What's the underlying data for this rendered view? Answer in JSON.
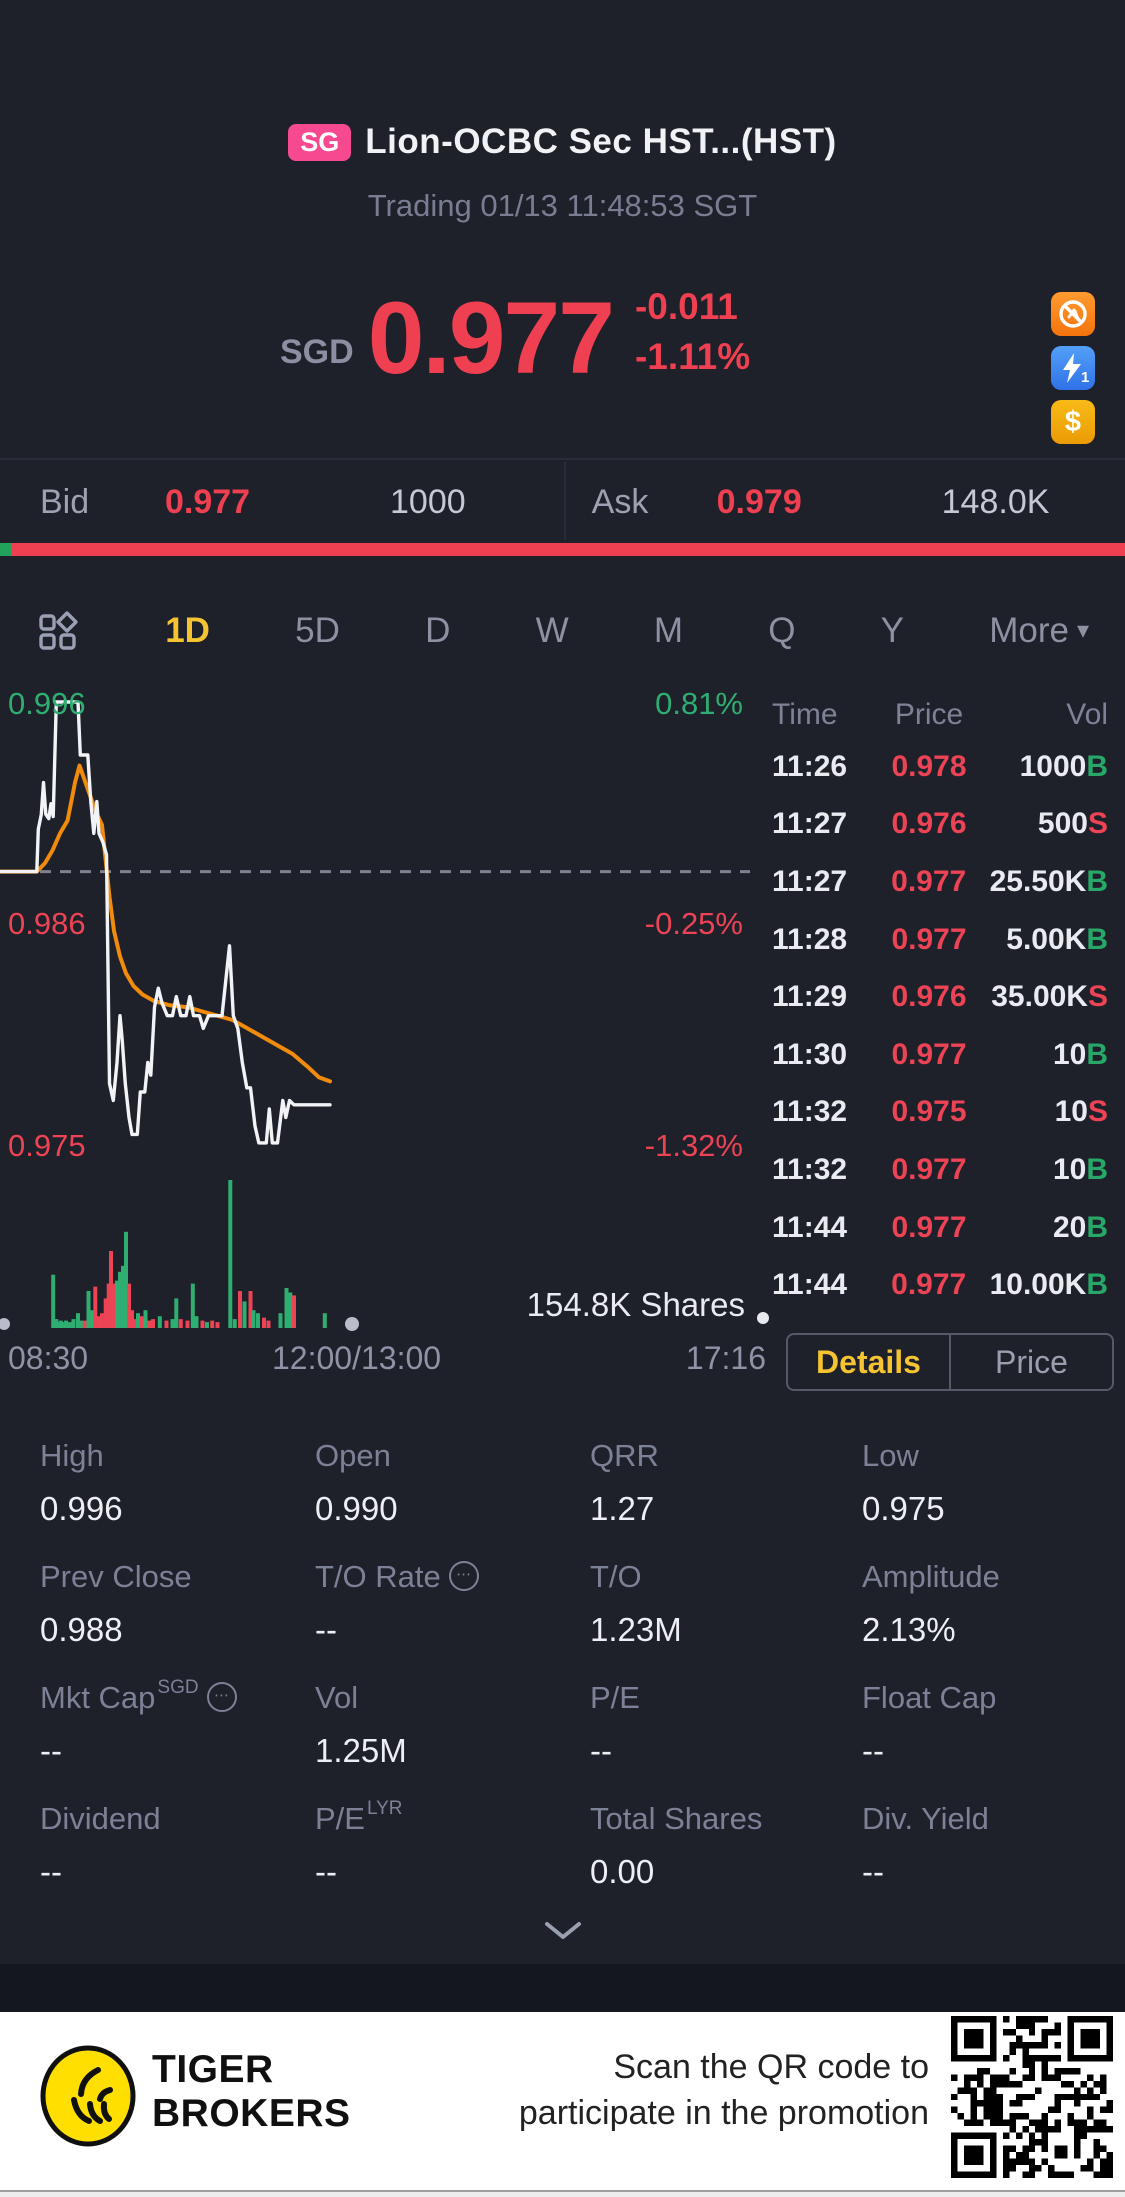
{
  "colors": {
    "up": "#2fae71",
    "down": "#ec4355",
    "price_red": "#ee4050",
    "accent_yellow": "#f6c431",
    "avg_orange": "#f08b0c",
    "badge_pink": "#f7498f"
  },
  "header": {
    "market_badge": "SG",
    "title": "Lion-OCBC Sec HST...(HST)",
    "subtitle": "Trading 01/13 11:48:53 SGT"
  },
  "quote": {
    "currency": "SGD",
    "price": "0.977",
    "change": "-0.011",
    "change_pct": "-1.11%",
    "badges": [
      {
        "name": "no-short-icon"
      },
      {
        "name": "flash-order-icon",
        "label": "1"
      },
      {
        "name": "cash-icon",
        "label": "$"
      }
    ]
  },
  "bid_ask": {
    "bid_label": "Bid",
    "bid_price": "0.977",
    "bid_size": "1000",
    "ask_label": "Ask",
    "ask_price": "0.979",
    "ask_size": "148.0K"
  },
  "periods": {
    "tabs": [
      "1D",
      "5D",
      "D",
      "W",
      "M",
      "Q",
      "Y"
    ],
    "active": "1D",
    "more_label": "More"
  },
  "chart_data": {
    "type": "line",
    "title": "HST 1D intraday",
    "y_range": [
      0.97496,
      0.996
    ],
    "prev_close": 0.988,
    "session_shown_fraction": 0.44,
    "y_axis": {
      "price_labels": [
        {
          "text": "0.996",
          "cls": "up"
        },
        {
          "text": "0.986",
          "cls": "dn"
        },
        {
          "text": "0.975",
          "cls": "dn"
        }
      ],
      "pct_labels": [
        {
          "text": "0.81%",
          "cls": "up"
        },
        {
          "text": "-0.25%",
          "cls": "dn"
        },
        {
          "text": "-1.32%",
          "cls": "dn"
        }
      ]
    },
    "x_axis": {
      "labels": [
        "08:30",
        "12:00/13:00",
        "17:16"
      ]
    },
    "series": [
      {
        "name": "price",
        "color": "#f2f3f6",
        "points": [
          [
            0.0,
            0.988
          ],
          [
            0.049,
            0.988
          ],
          [
            0.051,
            0.99
          ],
          [
            0.055,
            0.9907
          ],
          [
            0.058,
            0.9922
          ],
          [
            0.061,
            0.9907
          ],
          [
            0.065,
            0.9905
          ],
          [
            0.068,
            0.9912
          ],
          [
            0.071,
            0.9906
          ],
          [
            0.075,
            0.996
          ],
          [
            0.104,
            0.996
          ],
          [
            0.107,
            0.9935
          ],
          [
            0.117,
            0.9935
          ],
          [
            0.121,
            0.9913
          ],
          [
            0.125,
            0.9898
          ],
          [
            0.129,
            0.9913
          ],
          [
            0.132,
            0.9898
          ],
          [
            0.137,
            0.9894
          ],
          [
            0.142,
            0.9888
          ],
          [
            0.146,
            0.978
          ],
          [
            0.151,
            0.9772
          ],
          [
            0.156,
            0.979
          ],
          [
            0.16,
            0.9812
          ],
          [
            0.163,
            0.98
          ],
          [
            0.167,
            0.978
          ],
          [
            0.172,
            0.9764
          ],
          [
            0.176,
            0.9756
          ],
          [
            0.183,
            0.9756
          ],
          [
            0.187,
            0.9776
          ],
          [
            0.193,
            0.9776
          ],
          [
            0.197,
            0.979
          ],
          [
            0.201,
            0.9784
          ],
          [
            0.206,
            0.9816
          ],
          [
            0.211,
            0.9825
          ],
          [
            0.216,
            0.9818
          ],
          [
            0.223,
            0.9812
          ],
          [
            0.23,
            0.9812
          ],
          [
            0.235,
            0.9821
          ],
          [
            0.241,
            0.9812
          ],
          [
            0.248,
            0.9812
          ],
          [
            0.253,
            0.9821
          ],
          [
            0.258,
            0.9812
          ],
          [
            0.266,
            0.9812
          ],
          [
            0.271,
            0.9806
          ],
          [
            0.278,
            0.9812
          ],
          [
            0.285,
            0.9812
          ],
          [
            0.296,
            0.9812
          ],
          [
            0.306,
            0.9845
          ],
          [
            0.311,
            0.9812
          ],
          [
            0.317,
            0.9806
          ],
          [
            0.323,
            0.979
          ],
          [
            0.329,
            0.9778
          ],
          [
            0.334,
            0.9778
          ],
          [
            0.34,
            0.976
          ],
          [
            0.345,
            0.9752
          ],
          [
            0.355,
            0.9752
          ],
          [
            0.359,
            0.9768
          ],
          [
            0.363,
            0.9752
          ],
          [
            0.37,
            0.9752
          ],
          [
            0.377,
            0.9772
          ],
          [
            0.381,
            0.9764
          ],
          [
            0.386,
            0.9772
          ],
          [
            0.392,
            0.977
          ],
          [
            0.44,
            0.977
          ]
        ]
      },
      {
        "name": "avg",
        "color": "#f08b0c",
        "points": [
          [
            0.0,
            0.988
          ],
          [
            0.049,
            0.988
          ],
          [
            0.06,
            0.9884
          ],
          [
            0.07,
            0.989
          ],
          [
            0.08,
            0.9898
          ],
          [
            0.09,
            0.9904
          ],
          [
            0.1,
            0.9922
          ],
          [
            0.106,
            0.993
          ],
          [
            0.112,
            0.9924
          ],
          [
            0.12,
            0.9916
          ],
          [
            0.128,
            0.9908
          ],
          [
            0.136,
            0.9902
          ],
          [
            0.146,
            0.9868
          ],
          [
            0.152,
            0.9852
          ],
          [
            0.16,
            0.984
          ],
          [
            0.168,
            0.9832
          ],
          [
            0.178,
            0.9826
          ],
          [
            0.19,
            0.9822
          ],
          [
            0.205,
            0.9819
          ],
          [
            0.225,
            0.9817
          ],
          [
            0.25,
            0.9816
          ],
          [
            0.27,
            0.9814
          ],
          [
            0.29,
            0.9812
          ],
          [
            0.31,
            0.981
          ],
          [
            0.33,
            0.9806
          ],
          [
            0.35,
            0.9802
          ],
          [
            0.37,
            0.9798
          ],
          [
            0.39,
            0.9794
          ],
          [
            0.41,
            0.9788
          ],
          [
            0.425,
            0.9783
          ],
          [
            0.44,
            0.9781
          ]
        ]
      }
    ],
    "volume": {
      "shares_label": "154.8K Shares",
      "bars": [
        [
          0.071,
          0.36,
          "g"
        ],
        [
          0.075,
          0.06,
          "g"
        ],
        [
          0.078,
          0.04,
          "g"
        ],
        [
          0.081,
          0.05,
          "g"
        ],
        [
          0.084,
          0.04,
          "g"
        ],
        [
          0.088,
          0.05,
          "g"
        ],
        [
          0.093,
          0.04,
          "g"
        ],
        [
          0.098,
          0.06,
          "g"
        ],
        [
          0.104,
          0.1,
          "g"
        ],
        [
          0.108,
          0.05,
          "g"
        ],
        [
          0.113,
          0.05,
          "r"
        ],
        [
          0.118,
          0.25,
          "g"
        ],
        [
          0.122,
          0.12,
          "g"
        ],
        [
          0.127,
          0.28,
          "r"
        ],
        [
          0.131,
          0.08,
          "r"
        ],
        [
          0.136,
          0.1,
          "r"
        ],
        [
          0.141,
          0.2,
          "r"
        ],
        [
          0.145,
          0.3,
          "r"
        ],
        [
          0.148,
          0.52,
          "r"
        ],
        [
          0.152,
          0.3,
          "r"
        ],
        [
          0.156,
          0.32,
          "g"
        ],
        [
          0.16,
          0.38,
          "g"
        ],
        [
          0.164,
          0.42,
          "g"
        ],
        [
          0.168,
          0.65,
          "g"
        ],
        [
          0.172,
          0.3,
          "r"
        ],
        [
          0.176,
          0.12,
          "r"
        ],
        [
          0.18,
          0.06,
          "r"
        ],
        [
          0.184,
          0.1,
          "g"
        ],
        [
          0.189,
          0.08,
          "r"
        ],
        [
          0.194,
          0.12,
          "g"
        ],
        [
          0.199,
          0.05,
          "r"
        ],
        [
          0.204,
          0.06,
          "r"
        ],
        [
          0.213,
          0.08,
          "g"
        ],
        [
          0.222,
          0.05,
          "r"
        ],
        [
          0.23,
          0.06,
          "g"
        ],
        [
          0.235,
          0.2,
          "g"
        ],
        [
          0.241,
          0.06,
          "r"
        ],
        [
          0.25,
          0.05,
          "r"
        ],
        [
          0.257,
          0.3,
          "g"
        ],
        [
          0.262,
          0.08,
          "g"
        ],
        [
          0.27,
          0.05,
          "r"
        ],
        [
          0.276,
          0.04,
          "g"
        ],
        [
          0.283,
          0.05,
          "r"
        ],
        [
          0.29,
          0.04,
          "r"
        ],
        [
          0.307,
          1.0,
          "g"
        ],
        [
          0.313,
          0.06,
          "g"
        ],
        [
          0.32,
          0.25,
          "r"
        ],
        [
          0.326,
          0.18,
          "g"
        ],
        [
          0.334,
          0.25,
          "r"
        ],
        [
          0.338,
          0.12,
          "g"
        ],
        [
          0.344,
          0.1,
          "g"
        ],
        [
          0.352,
          0.07,
          "r"
        ],
        [
          0.358,
          0.05,
          "r"
        ],
        [
          0.374,
          0.1,
          "g"
        ],
        [
          0.382,
          0.27,
          "g"
        ],
        [
          0.387,
          0.24,
          "g"
        ],
        [
          0.392,
          0.22,
          "r"
        ],
        [
          0.433,
          0.1,
          "g"
        ]
      ]
    }
  },
  "tape": {
    "headers": [
      "Time",
      "Price",
      "Vol"
    ],
    "rows": [
      {
        "time": "11:26",
        "price": "0.978",
        "vol": "1000",
        "side": "B"
      },
      {
        "time": "11:27",
        "price": "0.976",
        "vol": "500",
        "side": "S"
      },
      {
        "time": "11:27",
        "price": "0.977",
        "vol": "25.50K",
        "side": "B"
      },
      {
        "time": "11:28",
        "price": "0.977",
        "vol": "5.00K",
        "side": "B"
      },
      {
        "time": "11:29",
        "price": "0.976",
        "vol": "35.00K",
        "side": "S"
      },
      {
        "time": "11:30",
        "price": "0.977",
        "vol": "10",
        "side": "B"
      },
      {
        "time": "11:32",
        "price": "0.975",
        "vol": "10",
        "side": "S"
      },
      {
        "time": "11:32",
        "price": "0.977",
        "vol": "10",
        "side": "B"
      },
      {
        "time": "11:44",
        "price": "0.977",
        "vol": "20",
        "side": "B"
      },
      {
        "time": "11:44",
        "price": "0.977",
        "vol": "10.00K",
        "side": "B"
      }
    ]
  },
  "toggle": {
    "options": [
      "Details",
      "Price"
    ],
    "active": "Details"
  },
  "stats": {
    "cells": [
      {
        "label": "High",
        "value": "0.996"
      },
      {
        "label": "Open",
        "value": "0.990"
      },
      {
        "label": "QRR",
        "value": "1.27"
      },
      {
        "label": "Low",
        "value": "0.975"
      },
      {
        "label": "Prev Close",
        "value": "0.988"
      },
      {
        "label": "T/O Rate",
        "value": "--",
        "info": true
      },
      {
        "label": "T/O",
        "value": "1.23M"
      },
      {
        "label": "Amplitude",
        "value": "2.13%"
      },
      {
        "label": "Mkt Cap",
        "value": "--",
        "sup": "SGD",
        "info": true
      },
      {
        "label": "Vol",
        "value": "1.25M"
      },
      {
        "label": "P/E",
        "value": "--"
      },
      {
        "label": "Float Cap",
        "value": "--"
      },
      {
        "label": "Dividend",
        "value": "--"
      },
      {
        "label": "P/E",
        "value": "--",
        "sup": "LYR"
      },
      {
        "label": "Total Shares",
        "value": "0.00"
      },
      {
        "label": "Div. Yield",
        "value": "--"
      }
    ]
  },
  "promo": {
    "brand_line1": "TIGER",
    "brand_line2": "BROKERS",
    "text_line1": "Scan the QR code to",
    "text_line2": "participate in the promotion"
  }
}
